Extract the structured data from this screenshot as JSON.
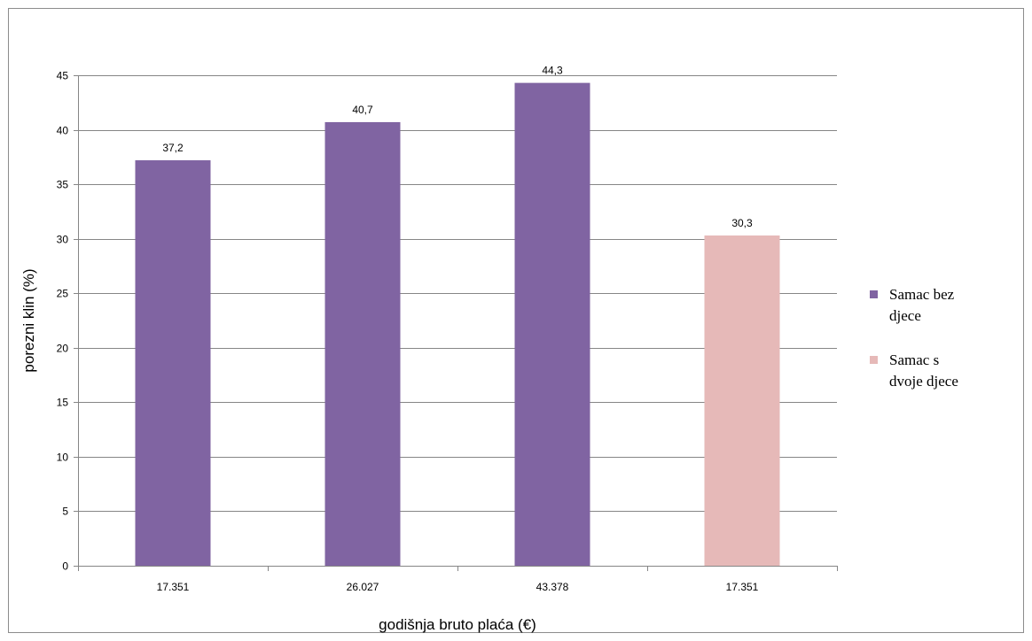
{
  "chart_data": {
    "type": "bar",
    "categories": [
      "17.351",
      "26.027",
      "43.378",
      "17.351"
    ],
    "values": [
      37.2,
      40.7,
      44.3,
      30.3
    ],
    "value_labels": [
      "37,2",
      "40,7",
      "44,3",
      "30,3"
    ],
    "bar_series": [
      0,
      0,
      0,
      1
    ],
    "series": [
      {
        "name": "Samac bez djece",
        "name_lines": [
          "Samac bez",
          "djece"
        ],
        "color": "#8064a2"
      },
      {
        "name": "Samac s dvoje djece",
        "name_lines": [
          "Samac s",
          "dvoje djece"
        ],
        "color": "#e6b9b8"
      }
    ],
    "xlabel": "godišnja bruto plaća (€)",
    "ylabel": "porezni klin (%)",
    "ylim": [
      0,
      45
    ],
    "yticks": [
      0,
      5,
      10,
      15,
      20,
      25,
      30,
      35,
      40,
      45
    ],
    "grid": true,
    "legend_position": "right"
  }
}
